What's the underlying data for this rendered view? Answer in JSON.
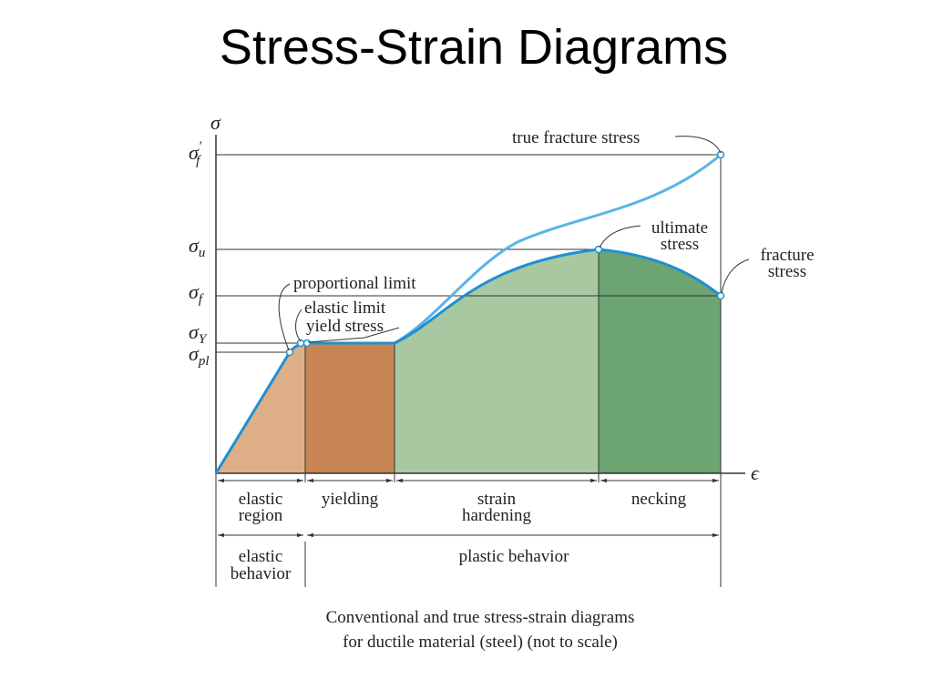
{
  "title": "Stress-Strain Diagrams",
  "axes": {
    "y_symbol": "σ",
    "x_symbol": "ϵ"
  },
  "stress_levels": [
    {
      "symbol": "σ",
      "subscript": "f",
      "superscript": "′"
    },
    {
      "symbol": "σ",
      "subscript": "u"
    },
    {
      "symbol": "σ",
      "subscript": "f"
    },
    {
      "symbol": "σ",
      "subscript": "Y"
    },
    {
      "symbol": "σ",
      "subscript": "pl"
    }
  ],
  "annotations": {
    "true_fracture_stress": "true fracture stress",
    "ultimate_stress": [
      "ultimate",
      "stress"
    ],
    "fracture_stress": [
      "fracture",
      "stress"
    ],
    "proportional_limit": "proportional limit",
    "elastic_limit": "elastic limit",
    "yield_stress": "yield stress"
  },
  "regions": [
    [
      "elastic",
      "region"
    ],
    [
      "yielding"
    ],
    [
      "strain",
      "hardening"
    ],
    [
      "necking"
    ]
  ],
  "behaviors": [
    [
      "elastic",
      "behavior"
    ],
    [
      "plastic behavior"
    ]
  ],
  "caption": [
    "Conventional and true stress-strain diagrams",
    "for ductile material (steel) (not to scale)"
  ]
}
